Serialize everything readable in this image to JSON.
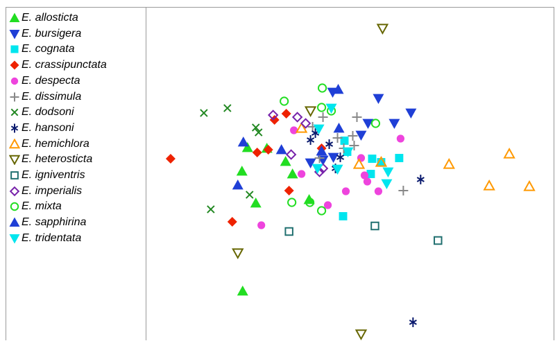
{
  "chart_data": {
    "type": "scatter",
    "title": "",
    "xlabel": "",
    "ylabel": "",
    "xlim": [
      0,
      590
    ],
    "ylim": [
      0,
      481
    ],
    "grid": false,
    "legend_position": "left",
    "series": [
      {
        "name": "E. allosticta",
        "marker": "triangle-up",
        "filled": true,
        "color": "#22dd22",
        "points": [
          [
            146,
            202
          ],
          [
            138,
            236
          ],
          [
            174,
            203
          ],
          [
            201,
            222
          ],
          [
            211,
            240
          ],
          [
            235,
            277
          ],
          [
            158,
            282
          ],
          [
            139,
            409
          ]
        ]
      },
      {
        "name": "E. bursigera",
        "marker": "triangle-down",
        "filled": true,
        "color": "#1f3fd6",
        "points": [
          [
            269,
            122
          ],
          [
            335,
            131
          ],
          [
            382,
            152
          ],
          [
            358,
            167
          ],
          [
            320,
            167
          ],
          [
            237,
            224
          ],
          [
            255,
            220
          ],
          [
            270,
            216
          ],
          [
            310,
            184
          ]
        ]
      },
      {
        "name": "E. cognata",
        "marker": "square",
        "filled": true,
        "color": "#00e5ee",
        "points": [
          [
            286,
            192
          ],
          [
            326,
            218
          ],
          [
            365,
            217
          ],
          [
            324,
            240
          ],
          [
            284,
            301
          ],
          [
            339,
            223
          ],
          [
            290,
            208
          ]
        ]
      },
      {
        "name": "E. crassipunctata",
        "marker": "diamond",
        "filled": true,
        "color": "#ee2200",
        "points": [
          [
            35,
            218
          ],
          [
            185,
            162
          ],
          [
            202,
            153
          ],
          [
            160,
            209
          ],
          [
            176,
            205
          ],
          [
            206,
            264
          ],
          [
            124,
            309
          ],
          [
            253,
            203
          ]
        ]
      },
      {
        "name": "E. despecta",
        "marker": "circle",
        "filled": true,
        "color": "#ee44dd",
        "points": [
          [
            367,
            189
          ],
          [
            310,
            217
          ],
          [
            315,
            242
          ],
          [
            319,
            251
          ],
          [
            335,
            265
          ],
          [
            288,
            265
          ],
          [
            224,
            240
          ],
          [
            213,
            177
          ],
          [
            262,
            285
          ],
          [
            166,
            314
          ]
        ]
      },
      {
        "name": "E. dissimula",
        "marker": "plus",
        "filled": false,
        "color": "#888888",
        "points": [
          [
            255,
            158
          ],
          [
            304,
            158
          ],
          [
            276,
            188
          ],
          [
            300,
            199
          ],
          [
            298,
            185
          ],
          [
            371,
            264
          ],
          [
            250,
            217
          ],
          [
            285,
            203
          ],
          [
            240,
            172
          ]
        ]
      },
      {
        "name": "E. dodsoni",
        "marker": "x",
        "filled": false,
        "color": "#228822",
        "points": [
          [
            83,
            152
          ],
          [
            117,
            145
          ],
          [
            158,
            173
          ],
          [
            162,
            180
          ],
          [
            149,
            270
          ],
          [
            93,
            291
          ]
        ]
      },
      {
        "name": "E. hansoni",
        "marker": "asterisk",
        "filled": false,
        "color": "#0a1a6e",
        "points": [
          [
            244,
            181
          ],
          [
            264,
            197
          ],
          [
            237,
            191
          ],
          [
            280,
            216
          ],
          [
            273,
            232
          ],
          [
            396,
            248
          ],
          [
            385,
            454
          ]
        ]
      },
      {
        "name": "E. hemichlora",
        "marker": "triangle-up",
        "filled": false,
        "color": "#ff9900",
        "points": [
          [
            524,
            211
          ],
          [
            437,
            226
          ],
          [
            495,
            257
          ],
          [
            553,
            258
          ],
          [
            307,
            226
          ],
          [
            339,
            223
          ],
          [
            224,
            174
          ]
        ]
      },
      {
        "name": "E. heterosticta",
        "marker": "triangle-down",
        "filled": false,
        "color": "#666600",
        "points": [
          [
            341,
            30
          ],
          [
            237,
            149
          ],
          [
            132,
            354
          ],
          [
            310,
            471
          ]
        ]
      },
      {
        "name": "E. igniventris",
        "marker": "square",
        "filled": false,
        "color": "#217070",
        "points": [
          [
            206,
            323
          ],
          [
            330,
            315
          ],
          [
            421,
            336
          ]
        ]
      },
      {
        "name": "E. imperialis",
        "marker": "diamond",
        "filled": false,
        "color": "#7722aa",
        "points": [
          [
            183,
            155
          ],
          [
            218,
            158
          ],
          [
            230,
            167
          ],
          [
            209,
            212
          ],
          [
            250,
            237
          ],
          [
            255,
            232
          ]
        ]
      },
      {
        "name": "E. mixta",
        "marker": "circle",
        "filled": false,
        "color": "#22dd22",
        "points": [
          [
            199,
            135
          ],
          [
            254,
            116
          ],
          [
            253,
            144
          ],
          [
            267,
            149
          ],
          [
            331,
            167
          ],
          [
            210,
            281
          ],
          [
            236,
            281
          ],
          [
            253,
            293
          ]
        ]
      },
      {
        "name": "E. sapphirina",
        "marker": "triangle-up",
        "filled": true,
        "color": "#1f3fd6",
        "points": [
          [
            277,
            118
          ],
          [
            140,
            194
          ],
          [
            195,
            205
          ],
          [
            132,
            256
          ],
          [
            253,
            207
          ],
          [
            278,
            174
          ]
        ]
      },
      {
        "name": "E. tridentata",
        "marker": "triangle-down",
        "filled": true,
        "color": "#00e5ee",
        "points": [
          [
            267,
            145
          ],
          [
            249,
            175
          ],
          [
            247,
            232
          ],
          [
            276,
            233
          ],
          [
            291,
            208
          ],
          [
            349,
            237
          ],
          [
            347,
            254
          ]
        ]
      }
    ]
  }
}
